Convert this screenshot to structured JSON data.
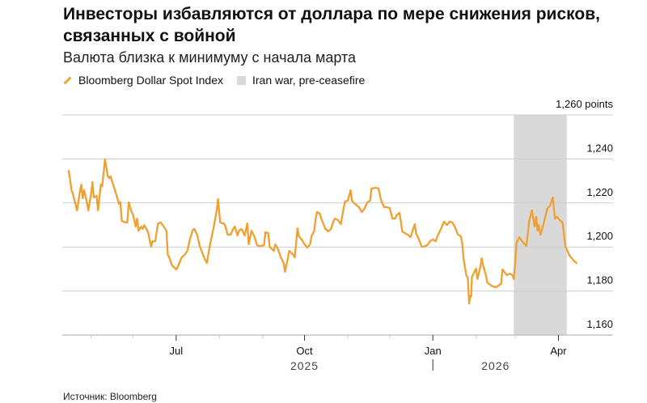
{
  "title": "Инвесторы избавляются от доллара по мере снижения рисков, связанных с войной",
  "subtitle": "Валюта близка к минимуму с начала марта",
  "legend": [
    {
      "label": "Bloomberg Dollar Spot Index",
      "color": "#f0a030",
      "kind": "line"
    },
    {
      "label": "Iran war, pre-ceasefire",
      "color": "#d9d9d9",
      "kind": "box"
    }
  ],
  "source": "Источник: Bloomberg",
  "chart_data": {
    "type": "line",
    "title": "Инвесторы избавляются от доллара по мере снижения рисков, связанных с войной",
    "subtitle": "Валюта близка к минимуму с начала марта",
    "xlabel": "",
    "ylabel": "points",
    "x_start_date": "2025-04-15",
    "x_unit": "days since x_start_date",
    "xlim": [
      0,
      395
    ],
    "ylim": [
      1160,
      1260
    ],
    "yticks": [
      1160,
      1180,
      1200,
      1220,
      1240,
      1260
    ],
    "ytick_labels": [
      "1,160",
      "1,180",
      "1,200",
      "1,220",
      "1,240",
      "1,260 points"
    ],
    "grid": true,
    "legend_position": "top-left",
    "xticks_major": [
      {
        "day": 77,
        "label": "Jul"
      },
      {
        "day": 169,
        "label": "Oct"
      },
      {
        "day": 261,
        "label": "Jan"
      },
      {
        "day": 351,
        "label": "Apr"
      }
    ],
    "xticks_minor": [
      16,
      46,
      108,
      139,
      200,
      230,
      292,
      320
    ],
    "year_labels": [
      {
        "day": 169,
        "label": "2025"
      },
      {
        "day": 306,
        "label": "2026"
      }
    ],
    "year_divider_day": 261,
    "shaded_region": {
      "label": "Iran war, pre-ceasefire",
      "start_day": 319,
      "end_day": 357
    },
    "series": [
      {
        "name": "Bloomberg Dollar Spot Index",
        "color": "#f0a030",
        "points": [
          [
            0,
            1234.6
          ],
          [
            2,
            1225.8
          ],
          [
            3,
            1224.0
          ],
          [
            6,
            1216.6
          ],
          [
            8,
            1225.1
          ],
          [
            9,
            1228.4
          ],
          [
            10,
            1222.1
          ],
          [
            11,
            1225.8
          ],
          [
            13,
            1220.3
          ],
          [
            14,
            1216.6
          ],
          [
            16,
            1224.0
          ],
          [
            17,
            1229.5
          ],
          [
            18,
            1222.5
          ],
          [
            20,
            1223.2
          ],
          [
            21,
            1216.6
          ],
          [
            23,
            1228.4
          ],
          [
            24,
            1227.6
          ],
          [
            26,
            1239.8
          ],
          [
            28,
            1232.1
          ],
          [
            29,
            1231.3
          ],
          [
            30,
            1232.1
          ],
          [
            31,
            1229.9
          ],
          [
            34,
            1224.0
          ],
          [
            36,
            1219.6
          ],
          [
            37,
            1220.3
          ],
          [
            38,
            1211.8
          ],
          [
            41,
            1211.1
          ],
          [
            42,
            1211.1
          ],
          [
            43,
            1220.3
          ],
          [
            45,
            1215.9
          ],
          [
            46,
            1214.8
          ],
          [
            48,
            1209.3
          ],
          [
            49,
            1212.9
          ],
          [
            50,
            1207.4
          ],
          [
            52,
            1209.3
          ],
          [
            53,
            1208.2
          ],
          [
            54,
            1210.0
          ],
          [
            56,
            1207.8
          ],
          [
            57,
            1206.3
          ],
          [
            59,
            1200.1
          ],
          [
            60,
            1202.6
          ],
          [
            62,
            1202.6
          ],
          [
            64,
            1210.7
          ],
          [
            66,
            1211.1
          ],
          [
            68,
            1209.3
          ],
          [
            70,
            1207.4
          ],
          [
            71,
            1196.4
          ],
          [
            72,
            1195.3
          ],
          [
            74,
            1191.6
          ],
          [
            77,
            1189.8
          ],
          [
            78,
            1190.9
          ],
          [
            81,
            1195.3
          ],
          [
            83,
            1196.4
          ],
          [
            85,
            1198.2
          ],
          [
            87,
            1203.8
          ],
          [
            89,
            1207.8
          ],
          [
            90,
            1208.2
          ],
          [
            92,
            1205.6
          ],
          [
            94,
            1200.1
          ],
          [
            97,
            1195.3
          ],
          [
            99,
            1192.7
          ],
          [
            101,
            1200.1
          ],
          [
            104,
            1209.3
          ],
          [
            106,
            1216.6
          ],
          [
            107,
            1221.8
          ],
          [
            108,
            1214.8
          ],
          [
            108.5,
            1211.1
          ],
          [
            111,
            1210.7
          ],
          [
            112,
            1210.0
          ],
          [
            114,
            1205.6
          ],
          [
            116,
            1205.6
          ],
          [
            118,
            1208.5
          ],
          [
            119,
            1209.3
          ],
          [
            121,
            1205.2
          ],
          [
            122,
            1207.4
          ],
          [
            124,
            1208.2
          ],
          [
            126,
            1205.2
          ],
          [
            128,
            1210.7
          ],
          [
            129,
            1201.2
          ],
          [
            131,
            1207.4
          ],
          [
            133,
            1204.9
          ],
          [
            135,
            1200.8
          ],
          [
            137,
            1200.4
          ],
          [
            140,
            1200.8
          ],
          [
            141,
            1206.7
          ],
          [
            143,
            1206.3
          ],
          [
            144,
            1200.1
          ],
          [
            147,
            1198.2
          ],
          [
            148,
            1201.2
          ],
          [
            150,
            1199.0
          ],
          [
            152,
            1195.3
          ],
          [
            154,
            1192.7
          ],
          [
            155,
            1188.7
          ],
          [
            157,
            1194.6
          ],
          [
            158,
            1198.2
          ],
          [
            161,
            1196.4
          ],
          [
            162,
            1195.3
          ],
          [
            163,
            1201.9
          ],
          [
            164,
            1208.5
          ],
          [
            165,
            1204.9
          ],
          [
            167,
            1203.4
          ],
          [
            169,
            1201.2
          ],
          [
            171,
            1199.7
          ],
          [
            173,
            1201.2
          ],
          [
            174,
            1204.9
          ],
          [
            176,
            1207.4
          ],
          [
            177,
            1212.9
          ],
          [
            178,
            1215.9
          ],
          [
            180,
            1215.1
          ],
          [
            181,
            1212.9
          ],
          [
            184,
            1208.2
          ],
          [
            186,
            1207.1
          ],
          [
            188,
            1208.2
          ],
          [
            190,
            1212.2
          ],
          [
            191,
            1212.9
          ],
          [
            193,
            1212.2
          ],
          [
            195,
            1210.4
          ],
          [
            197,
            1217.4
          ],
          [
            198,
            1220.7
          ],
          [
            200,
            1221.0
          ],
          [
            202,
            1225.8
          ],
          [
            203,
            1221.0
          ],
          [
            205,
            1219.6
          ],
          [
            206,
            1219.2
          ],
          [
            208,
            1218.1
          ],
          [
            210,
            1215.9
          ],
          [
            212,
            1217.4
          ],
          [
            214,
            1220.3
          ],
          [
            216,
            1221.0
          ],
          [
            217,
            1226.5
          ],
          [
            220,
            1226.9
          ],
          [
            222,
            1226.5
          ],
          [
            224,
            1221.0
          ],
          [
            226,
            1218.1
          ],
          [
            228,
            1218.1
          ],
          [
            230,
            1217.7
          ],
          [
            232,
            1212.9
          ],
          [
            234,
            1212.9
          ],
          [
            235,
            1214.4
          ],
          [
            237,
            1215.5
          ],
          [
            238,
            1211.8
          ],
          [
            239,
            1207.1
          ],
          [
            241,
            1206.3
          ],
          [
            243,
            1205.6
          ],
          [
            245,
            1204.5
          ],
          [
            248,
            1210.4
          ],
          [
            249,
            1206.3
          ],
          [
            251,
            1203.4
          ],
          [
            253,
            1200.1
          ],
          [
            254,
            1200.1
          ],
          [
            257,
            1200.8
          ],
          [
            259,
            1202.6
          ],
          [
            261,
            1203.4
          ],
          [
            263,
            1202.6
          ],
          [
            264,
            1204.5
          ],
          [
            267,
            1208.5
          ],
          [
            269,
            1211.5
          ],
          [
            271,
            1210.0
          ],
          [
            273,
            1211.5
          ],
          [
            275,
            1211.1
          ],
          [
            277,
            1208.9
          ],
          [
            279,
            1205.6
          ],
          [
            281,
            1204.9
          ],
          [
            282,
            1201.9
          ],
          [
            283,
            1194.6
          ],
          [
            285,
            1187.2
          ],
          [
            286,
            1186.1
          ],
          [
            287,
            1174.3
          ],
          [
            288,
            1178.0
          ],
          [
            288.5,
            1177.6
          ],
          [
            289,
            1186.4
          ],
          [
            291,
            1189.0
          ],
          [
            292,
            1190.1
          ],
          [
            293,
            1185.4
          ],
          [
            295,
            1190.9
          ],
          [
            296,
            1194.9
          ],
          [
            297,
            1191.6
          ],
          [
            299,
            1187.2
          ],
          [
            300,
            1183.9
          ],
          [
            303,
            1182.4
          ],
          [
            304,
            1182.1
          ],
          [
            306,
            1181.7
          ],
          [
            308,
            1182.4
          ],
          [
            310,
            1183.5
          ],
          [
            310.5,
            1187.2
          ],
          [
            311,
            1189.8
          ],
          [
            314,
            1187.2
          ],
          [
            316,
            1187.9
          ],
          [
            318,
            1187.2
          ],
          [
            319,
            1185.4
          ],
          [
            320,
            1192.7
          ],
          [
            321,
            1201.9
          ],
          [
            323,
            1204.5
          ],
          [
            325,
            1202.6
          ],
          [
            328,
            1200.4
          ],
          [
            329,
            1205.6
          ],
          [
            330,
            1211.8
          ],
          [
            332,
            1216.6
          ],
          [
            333,
            1212.9
          ],
          [
            334,
            1209.3
          ],
          [
            335,
            1213.7
          ],
          [
            336,
            1207.4
          ],
          [
            337,
            1210.0
          ],
          [
            338,
            1205.6
          ],
          [
            339,
            1207.4
          ],
          [
            341,
            1212.2
          ],
          [
            343,
            1217.4
          ],
          [
            345,
            1218.8
          ],
          [
            347,
            1222.5
          ],
          [
            348,
            1215.9
          ],
          [
            348.5,
            1212.9
          ],
          [
            350,
            1213.7
          ],
          [
            352,
            1212.2
          ],
          [
            354,
            1211.1
          ],
          [
            355,
            1205.6
          ],
          [
            356,
            1200.1
          ],
          [
            357,
            1199.0
          ],
          [
            359,
            1196.0
          ],
          [
            360,
            1195.3
          ],
          [
            362,
            1193.8
          ],
          [
            364,
            1192.7
          ]
        ]
      }
    ]
  }
}
